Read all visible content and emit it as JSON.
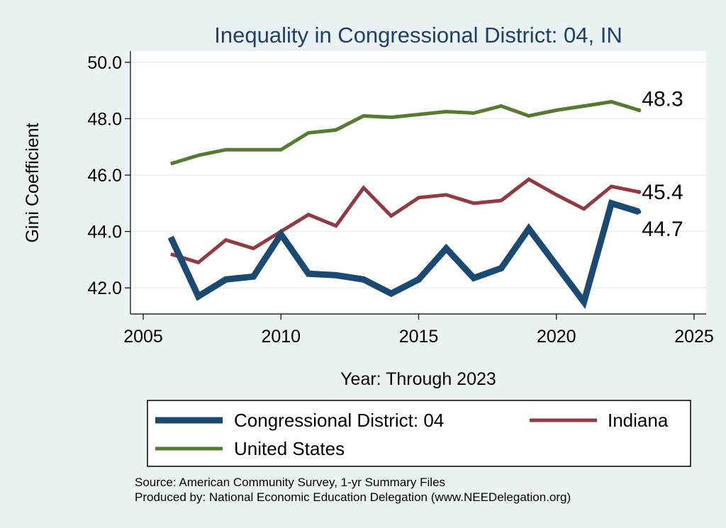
{
  "chart_data": {
    "type": "line",
    "title": "Inequality in Congressional District:  04, IN",
    "xlabel": "Year: Through 2023",
    "ylabel": "Gini Coefficient",
    "xlim": [
      2005,
      2025
    ],
    "ylim": [
      41.0,
      50.5
    ],
    "x_ticks": [
      2005,
      2010,
      2015,
      2020,
      2025
    ],
    "y_ticks": [
      "42.0",
      "44.0",
      "46.0",
      "48.0",
      "50.0"
    ],
    "x": [
      2006,
      2007,
      2008,
      2009,
      2010,
      2011,
      2012,
      2013,
      2014,
      2015,
      2016,
      2017,
      2018,
      2019,
      2020,
      2021,
      2022,
      2023
    ],
    "series": [
      {
        "name": "Congressional District:  04",
        "color": "#1a4a72",
        "values": [
          43.8,
          41.7,
          42.3,
          42.4,
          43.9,
          42.5,
          42.45,
          42.3,
          41.8,
          42.3,
          43.4,
          42.35,
          42.7,
          44.1,
          42.8,
          41.5,
          45.0,
          44.7
        ],
        "end_label": "44.7"
      },
      {
        "name": "Indiana",
        "color": "#923a41",
        "values": [
          43.2,
          42.9,
          43.7,
          43.4,
          44.0,
          44.6,
          44.2,
          45.55,
          44.55,
          45.2,
          45.3,
          45.0,
          45.1,
          45.85,
          45.3,
          44.8,
          45.6,
          45.4
        ],
        "end_label": "45.4"
      },
      {
        "name": "United States",
        "color": "#567a2f",
        "values": [
          46.4,
          46.7,
          46.9,
          46.9,
          46.9,
          47.5,
          47.6,
          48.1,
          48.05,
          48.15,
          48.25,
          48.2,
          48.45,
          48.1,
          48.3,
          48.45,
          48.6,
          48.3
        ],
        "end_label": "48.3"
      }
    ],
    "legend": {
      "placement": "bottom",
      "entries": [
        "Congressional District:  04",
        "Indiana",
        "United States"
      ]
    },
    "source_lines": [
      "Source: American Community Survey, 1-yr Summary Files",
      "Produced by: National Economic Education Delegation (www.NEEDelegation.org)"
    ],
    "grid": true
  }
}
